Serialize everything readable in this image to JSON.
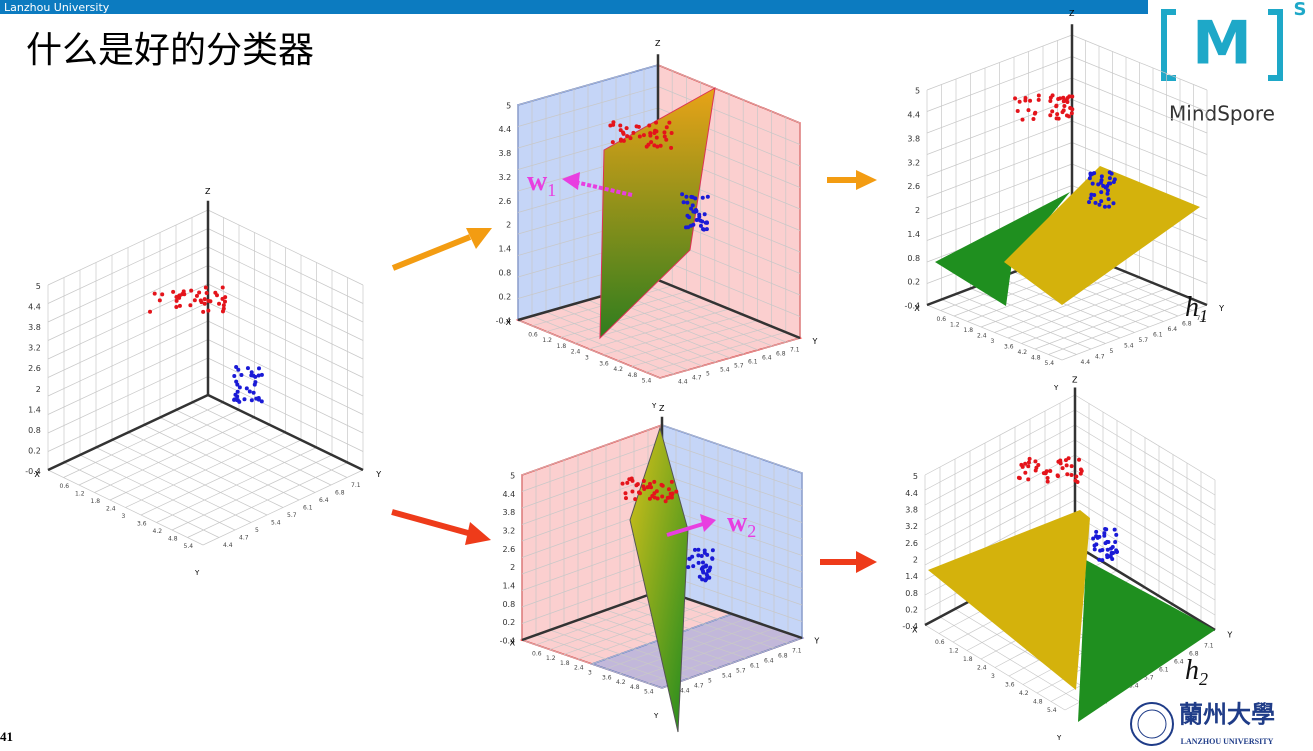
{
  "header": {
    "university": "Lanzhou University",
    "page_number": "41"
  },
  "title": "什么是好的分类器",
  "logo": {
    "mark": "M",
    "superscript": "S",
    "name": "MindSpore"
  },
  "axes": {
    "x": "X",
    "y": "Y",
    "z": "Z",
    "z_ticks": [
      5,
      4.4,
      3.8,
      3.2,
      2.6,
      2,
      1.4,
      0.8,
      0.2,
      -0.4
    ],
    "x_ticks": [
      0.6,
      1.2,
      1.8,
      2.4,
      3,
      3.6,
      4.2,
      4.8,
      5.4
    ],
    "y_ticks": [
      7.1,
      6.8,
      6.4,
      6.1,
      5.7,
      5.4,
      5,
      4.7,
      4.4
    ]
  },
  "labels": {
    "w1": {
      "base": "w",
      "sub": "1"
    },
    "w2": {
      "base": "w",
      "sub": "2"
    },
    "h1": {
      "base": "h",
      "sub": "1"
    },
    "h2": {
      "base": "h",
      "sub": "2"
    }
  },
  "university_logo": {
    "name": "蘭州大學",
    "english": "LANZHOU UNIVERSITY"
  }
}
